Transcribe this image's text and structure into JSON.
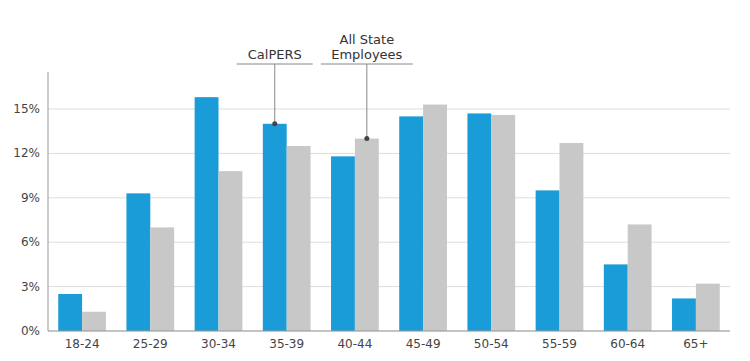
{
  "chart_data": {
    "type": "bar",
    "categories": [
      "18-24",
      "25-29",
      "30-34",
      "35-39",
      "40-44",
      "45-49",
      "50-54",
      "55-59",
      "60-64",
      "65+"
    ],
    "series": [
      {
        "color": "#1a9cd8",
        "values": [
          2.5,
          9.3,
          15.8,
          14.0,
          11.8,
          14.5,
          14.7,
          9.5,
          4.5,
          2.2
        ]
      },
      {
        "color": "#c8c8c8",
        "values": [
          1.3,
          7.0,
          10.8,
          12.5,
          13.0,
          15.3,
          14.6,
          12.7,
          7.2,
          3.2
        ]
      }
    ],
    "ylim": [
      0,
      17.5
    ],
    "yticks": [
      {
        "value": 0,
        "label": "0%"
      },
      {
        "value": 3,
        "label": "3%"
      },
      {
        "value": 6,
        "label": "6%"
      },
      {
        "value": 9,
        "label": "9%"
      },
      {
        "value": 12,
        "label": "12%"
      },
      {
        "value": 15,
        "label": "15%"
      }
    ],
    "grid": true,
    "annotations": [
      {
        "text": "CalPERS",
        "x": "35-39",
        "series": 0
      },
      {
        "text": "All State\nEmployees",
        "x": "40-44",
        "series": 1
      }
    ]
  }
}
